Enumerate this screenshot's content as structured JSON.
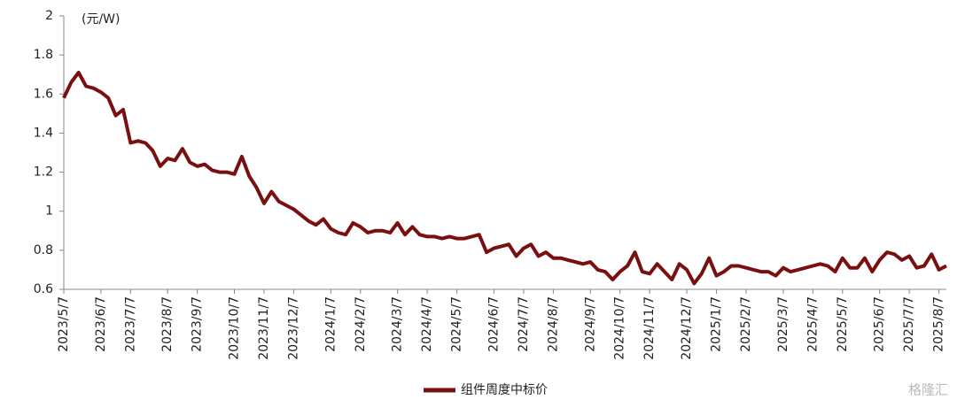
{
  "chart_data": {
    "type": "line",
    "y_unit": "(元/W)",
    "categories": [
      "2023/5/7",
      null,
      null,
      null,
      null,
      "2023/6/7",
      null,
      null,
      null,
      "2023/7/7",
      null,
      null,
      null,
      null,
      "2023/8/7",
      null,
      null,
      null,
      "2023/9/7",
      null,
      null,
      null,
      null,
      "2023/10/7",
      null,
      null,
      null,
      "2023/11/7",
      null,
      null,
      null,
      "2023/12/7",
      null,
      null,
      null,
      null,
      "2024/1/7",
      null,
      null,
      null,
      "2024/2/7",
      null,
      null,
      null,
      null,
      "2024/3/7",
      null,
      null,
      null,
      "2024/4/7",
      null,
      null,
      null,
      "2024/5/7",
      null,
      null,
      null,
      null,
      "2024/6/7",
      null,
      null,
      null,
      "2024/7/7",
      null,
      null,
      null,
      "2024/8/7",
      null,
      null,
      null,
      null,
      "2024/9/7",
      null,
      null,
      null,
      "2024/10/7",
      null,
      null,
      null,
      "2024/11/7",
      null,
      null,
      null,
      null,
      "2024/12/7",
      null,
      null,
      null,
      "2025/1/7",
      null,
      null,
      null,
      "2025/2/7",
      null,
      null,
      null,
      null,
      "2025/3/7",
      null,
      null,
      null,
      "2025/4/7",
      null,
      null,
      null,
      "2025/5/7",
      null,
      null,
      null,
      null,
      "2025/6/7",
      null,
      null,
      null,
      "2025/7/7",
      null,
      null,
      null,
      "2025/8/7",
      null
    ],
    "series": [
      {
        "name": "组件周度中标价",
        "color": "#7a0f0f",
        "values": [
          1.58,
          1.66,
          1.71,
          1.64,
          1.63,
          1.61,
          1.58,
          1.49,
          1.52,
          1.35,
          1.36,
          1.35,
          1.31,
          1.23,
          1.27,
          1.26,
          1.32,
          1.25,
          1.23,
          1.24,
          1.21,
          1.2,
          1.2,
          1.19,
          1.28,
          1.18,
          1.12,
          1.04,
          1.1,
          1.05,
          1.03,
          1.01,
          0.98,
          0.95,
          0.93,
          0.96,
          0.91,
          0.89,
          0.88,
          0.94,
          0.92,
          0.89,
          0.9,
          0.9,
          0.89,
          0.94,
          0.88,
          0.92,
          0.88,
          0.87,
          0.87,
          0.86,
          0.87,
          0.86,
          0.86,
          0.87,
          0.88,
          0.79,
          0.81,
          0.82,
          0.83,
          0.77,
          0.81,
          0.83,
          0.77,
          0.79,
          0.76,
          0.76,
          0.75,
          0.74,
          0.73,
          0.74,
          0.7,
          0.69,
          0.65,
          0.69,
          0.72,
          0.79,
          0.69,
          0.68,
          0.73,
          0.69,
          0.65,
          0.73,
          0.7,
          0.63,
          0.68,
          0.76,
          0.67,
          0.69,
          0.72,
          0.72,
          0.71,
          0.7,
          0.69,
          0.69,
          0.67,
          0.71,
          0.69,
          0.7,
          0.71,
          0.72,
          0.73,
          0.72,
          0.69,
          0.76,
          0.71,
          0.71,
          0.76,
          0.69,
          0.75,
          0.79,
          0.78,
          0.75,
          0.77,
          0.71,
          0.72,
          0.78,
          0.7,
          0.72
        ]
      }
    ],
    "ylim": [
      0.6,
      2
    ],
    "yticks": [
      0.6,
      0.8,
      1,
      1.2,
      1.4,
      1.6,
      1.8,
      2
    ],
    "legend": "bottom",
    "watermark": "格隆汇"
  }
}
